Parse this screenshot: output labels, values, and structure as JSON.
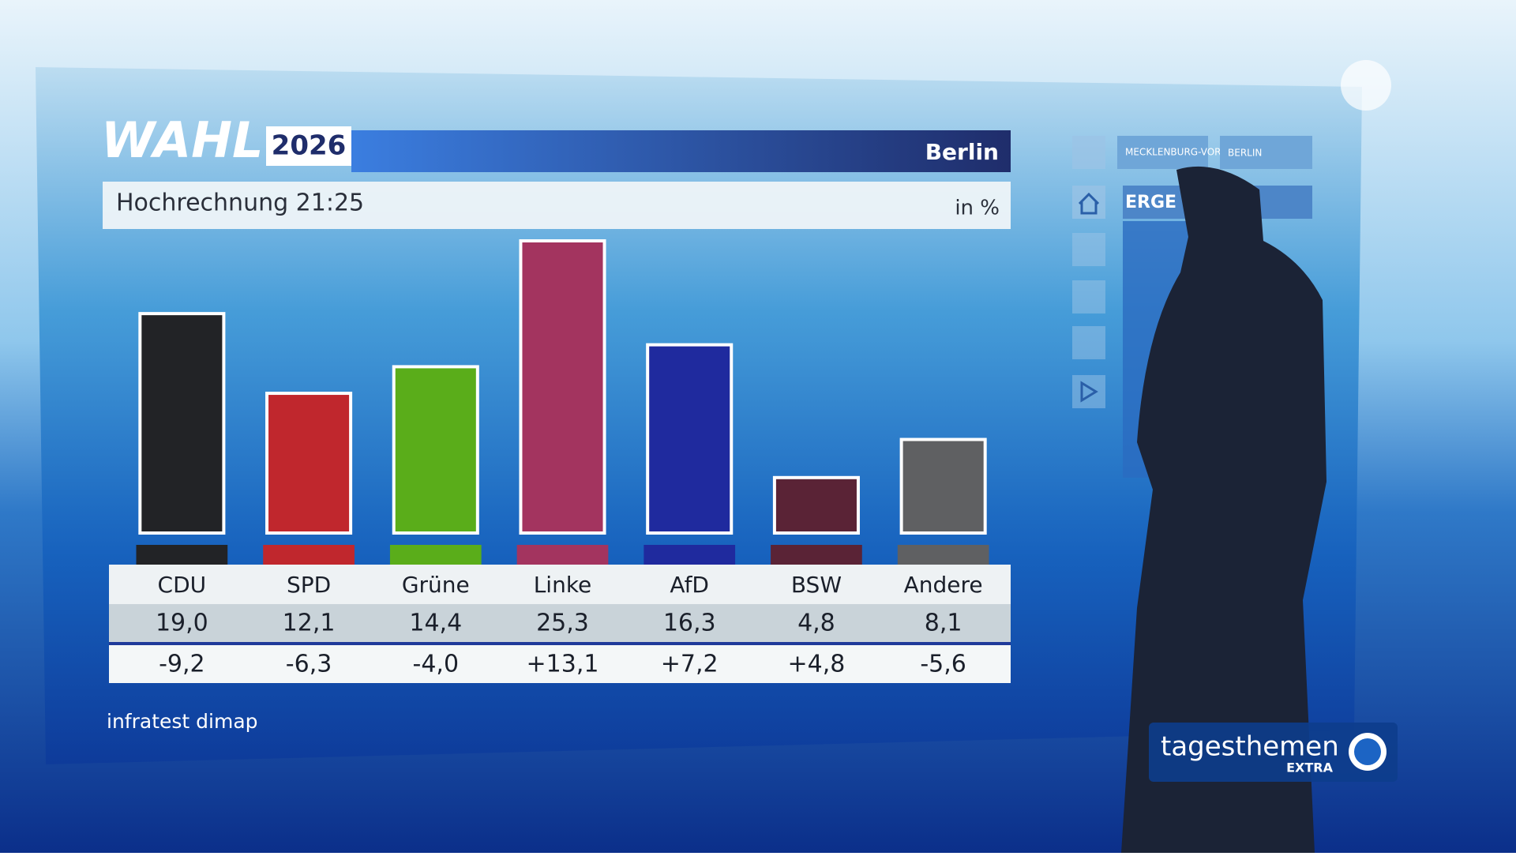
{
  "chart_data": {
    "type": "bar",
    "title": "WAHL",
    "year": "2026",
    "region": "Berlin",
    "subtitle": "Hochrechnung 21:25",
    "unit": "in %",
    "categories": [
      "CDU",
      "SPD",
      "Grüne",
      "Linke",
      "AfD",
      "BSW",
      "Andere"
    ],
    "values": [
      19.0,
      12.1,
      14.4,
      25.3,
      16.3,
      4.8,
      8.1
    ],
    "value_labels": [
      "19,0",
      "12,1",
      "14,4",
      "25,3",
      "16,3",
      "4,8",
      "8,1"
    ],
    "changes": [
      "-9,2",
      "-6,3",
      "-4,0",
      "+13,1",
      "+7,2",
      "+4,8",
      "-5,6"
    ],
    "colors": [
      "#222326",
      "#c0272d",
      "#5aad1a",
      "#a3345f",
      "#1f2a9e",
      "#5a2336",
      "#5f6062"
    ],
    "source": "infratest dimap"
  },
  "navigation": {
    "tabs": [
      "MECKLENBURG-VORPOMMERN",
      "BERLIN"
    ],
    "section": "ERGE"
  },
  "logo": {
    "name": "tagesthemen",
    "suffix": "EXTRA"
  }
}
